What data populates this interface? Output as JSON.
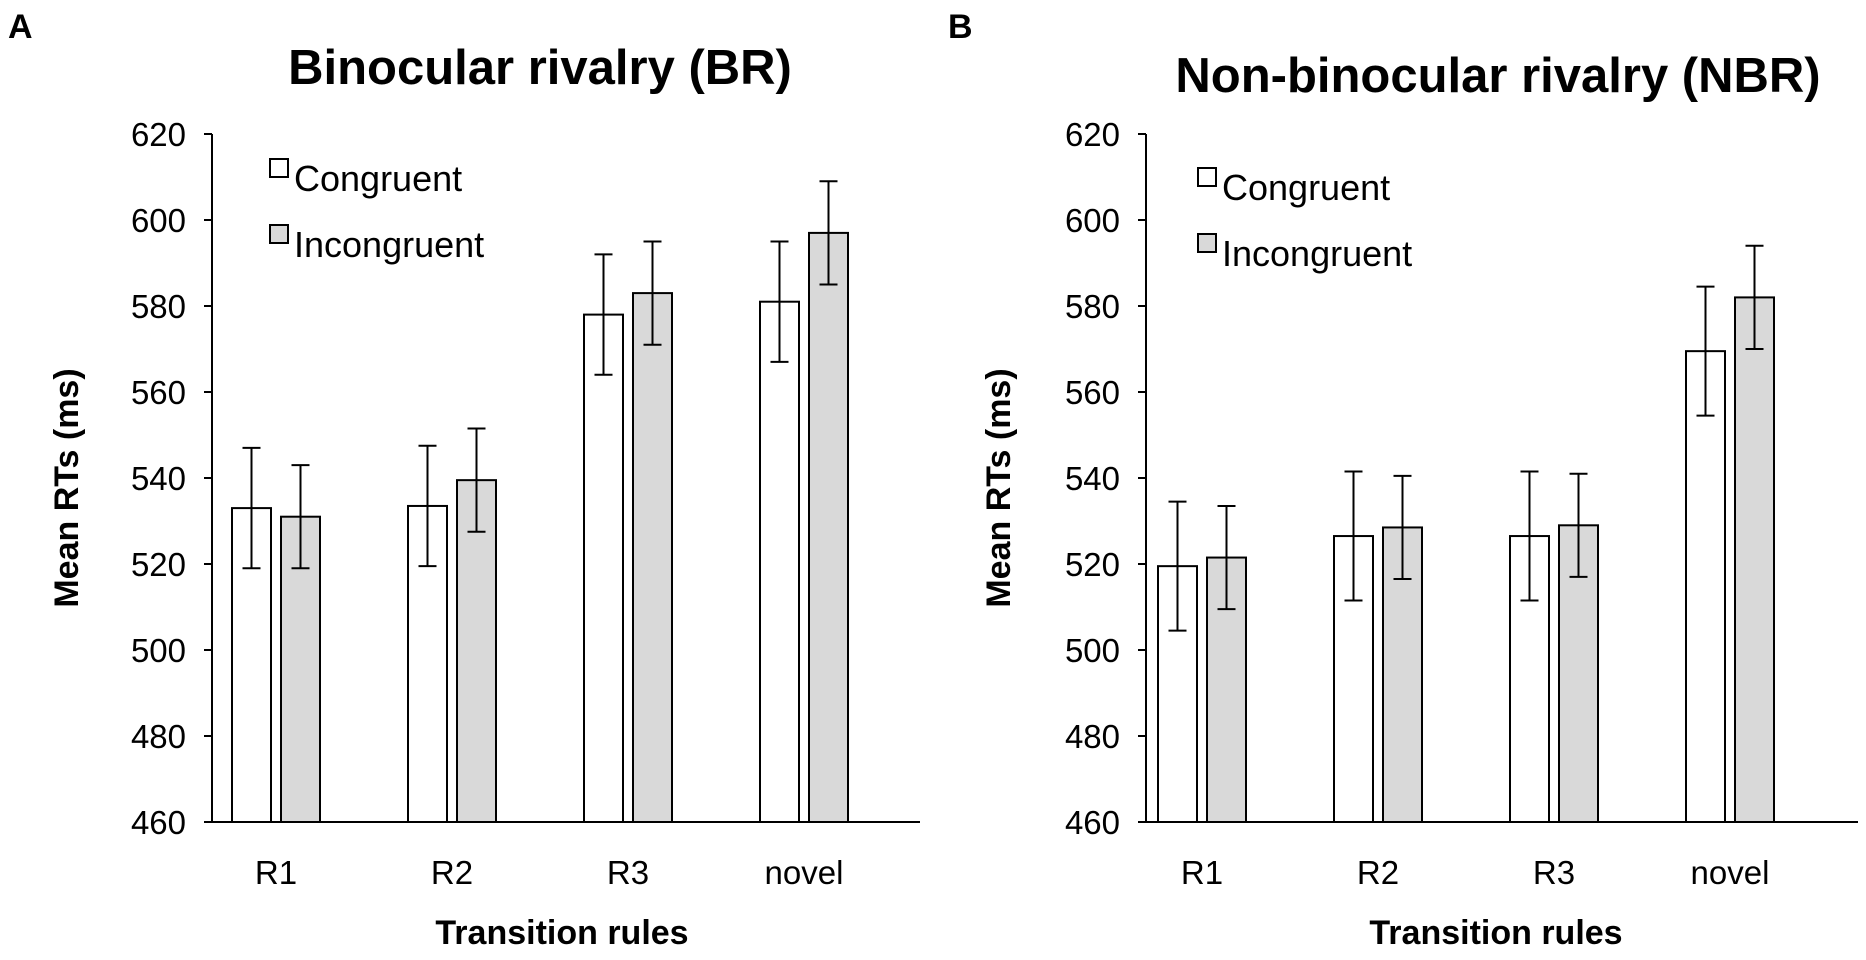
{
  "figure": {
    "panels": [
      {
        "label": "A",
        "chart_data": {
          "type": "bar",
          "title": "Binocular rivalry (BR)",
          "xlabel": "Transition rules",
          "ylabel": "Mean RTs (ms)",
          "ylim": [
            460,
            620
          ],
          "yticks": [
            460,
            480,
            500,
            520,
            540,
            560,
            580,
            600,
            620
          ],
          "categories": [
            "R1",
            "R2",
            "R3",
            "novel"
          ],
          "legend_position": "top-left",
          "series": [
            {
              "name": "Congruent",
              "color": "#ffffff",
              "values": [
                533,
                533.5,
                578,
                581
              ],
              "errors": [
                14,
                14,
                14,
                14
              ]
            },
            {
              "name": "Incongruent",
              "color": "#d9d9d9",
              "values": [
                531,
                539.5,
                583,
                597
              ],
              "errors": [
                12,
                12,
                12,
                12
              ]
            }
          ]
        }
      },
      {
        "label": "B",
        "chart_data": {
          "type": "bar",
          "title": "Non-binocular rivalry (NBR)",
          "xlabel": "Transition rules",
          "ylabel": "Mean RTs (ms)",
          "ylim": [
            460,
            620
          ],
          "yticks": [
            460,
            480,
            500,
            520,
            540,
            560,
            580,
            600,
            620
          ],
          "categories": [
            "R1",
            "R2",
            "R3",
            "novel"
          ],
          "legend_position": "top-left",
          "series": [
            {
              "name": "Congruent",
              "color": "#ffffff",
              "values": [
                519.5,
                526.5,
                526.5,
                569.5
              ],
              "errors": [
                15,
                15,
                15,
                15
              ]
            },
            {
              "name": "Incongruent",
              "color": "#d9d9d9",
              "values": [
                521.5,
                528.5,
                529,
                582
              ],
              "errors": [
                12,
                12,
                12,
                12
              ]
            }
          ]
        }
      }
    ]
  }
}
